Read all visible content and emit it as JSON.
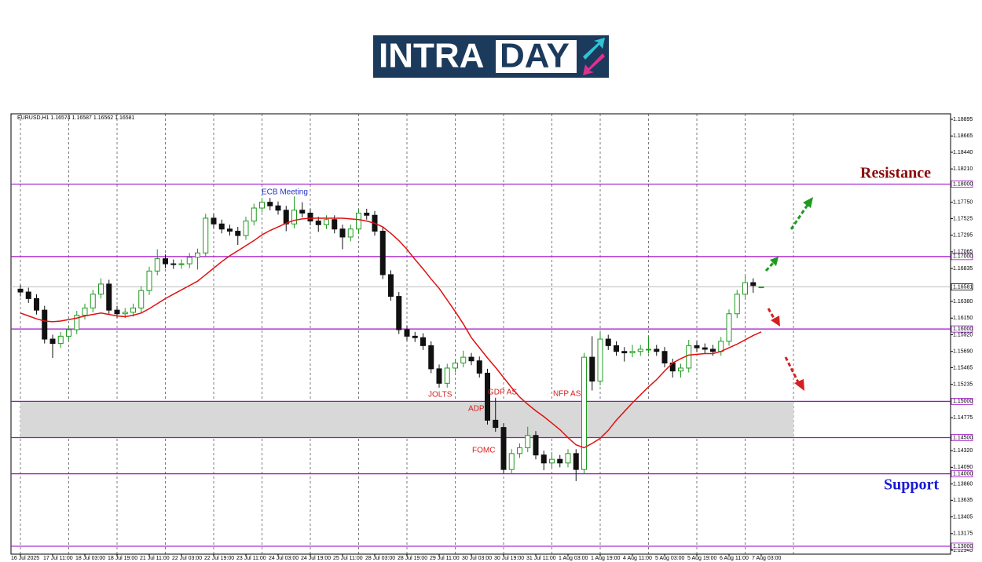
{
  "logo": [
    "INTRA",
    "DAY"
  ],
  "chart_data": {
    "type": "candlestick",
    "header": "EURUSD,H1  1.16574 1.16587 1.16562 1.16581",
    "categories": [
      "16 Jul 2025",
      null,
      null,
      null,
      "17 Jul 11:00",
      null,
      null,
      null,
      "18 Jul 03:00",
      null,
      null,
      null,
      "18 Jul 19:00",
      null,
      null,
      null,
      "21 Jul 11:00",
      null,
      null,
      null,
      "22 Jul 03:00",
      null,
      null,
      null,
      "22 Jul 19:00",
      null,
      null,
      null,
      "23 Jul 11:00",
      null,
      null,
      null,
      "24 Jul 03:00",
      null,
      null,
      null,
      "24 Jul 19:00",
      null,
      null,
      null,
      "25 Jul 11:00",
      null,
      null,
      null,
      "28 Jul 03:00",
      null,
      null,
      null,
      "28 Jul 19:00",
      null,
      null,
      null,
      "29 Jul 11:00",
      null,
      null,
      null,
      "30 Jul 03:00",
      null,
      null,
      null,
      "30 Jul 19:00",
      null,
      null,
      null,
      "31 Jul 11:00",
      null,
      null,
      null,
      "1 Aug 03:00",
      null,
      null,
      null,
      "1 Aug 19:00",
      null,
      null,
      null,
      "4 Aug 11:00",
      null,
      null,
      null,
      "5 Aug 03:00",
      null,
      null,
      null,
      "5 Aug 19:00",
      null,
      null,
      null,
      "6 Aug 11:00",
      null,
      null,
      null,
      "7 Aug 03:00"
    ],
    "open": [
      1.1655,
      1.1651,
      1.1642,
      1.1626,
      1.1586,
      1.158,
      1.159,
      1.1599,
      1.1619,
      1.1629,
      1.1648,
      1.1662,
      1.1626,
      1.1621,
      1.1623,
      1.1629,
      1.1653,
      1.168,
      1.1697,
      1.169,
      1.1689,
      1.169,
      1.1699,
      1.1705,
      1.1753,
      1.1745,
      1.1738,
      1.1735,
      1.1729,
      1.1749,
      1.1767,
      1.1775,
      1.177,
      1.1764,
      1.1745,
      1.1764,
      1.176,
      1.1749,
      1.1744,
      1.1751,
      1.1738,
      1.1727,
      1.1738,
      1.176,
      1.1757,
      1.1735,
      1.1675,
      1.1645,
      1.1599,
      1.159,
      1.1588,
      1.1577,
      1.1545,
      1.1525,
      1.1546,
      1.1553,
      1.1561,
      1.1556,
      1.1539,
      1.1474,
      1.1464,
      1.1406,
      1.1428,
      1.1436,
      1.1453,
      1.1426,
      1.1415,
      1.142,
      1.1415,
      1.1428,
      1.1406,
      1.1561,
      1.1528,
      1.1586,
      1.1577,
      1.1569,
      1.1567,
      1.1569,
      1.1572,
      1.1572,
      1.1569,
      1.1553,
      1.1542,
      1.1546,
      1.1577,
      1.1574,
      1.1572,
      1.1569,
      1.1583,
      1.1621,
      1.1648,
      1.1664,
      1.16574
    ],
    "high": [
      1.1661,
      1.1657,
      1.1648,
      1.1632,
      1.1592,
      1.1596,
      1.1605,
      1.1625,
      1.1635,
      1.1654,
      1.167,
      1.1668,
      1.1632,
      1.1629,
      1.1635,
      1.1659,
      1.1686,
      1.171,
      1.1703,
      1.1696,
      1.1696,
      1.1705,
      1.1711,
      1.1759,
      1.1759,
      1.1751,
      1.1744,
      1.1741,
      1.1755,
      1.1773,
      1.1781,
      1.1781,
      1.1776,
      1.177,
      1.1783,
      1.1775,
      1.1766,
      1.1755,
      1.1757,
      1.1757,
      1.1744,
      1.1744,
      1.1766,
      1.1766,
      1.1763,
      1.1741,
      1.1681,
      1.1651,
      1.1605,
      1.1596,
      1.1594,
      1.1583,
      1.1551,
      1.1552,
      1.1559,
      1.157,
      1.1567,
      1.1562,
      1.1545,
      1.1505,
      1.147,
      1.1434,
      1.1442,
      1.1465,
      1.1459,
      1.1432,
      1.143,
      1.1426,
      1.1434,
      1.1434,
      1.1567,
      1.159,
      1.1595,
      1.1592,
      1.1583,
      1.1575,
      1.1578,
      1.1578,
      1.159,
      1.1578,
      1.1575,
      1.1559,
      1.1552,
      1.1585,
      1.1583,
      1.158,
      1.1578,
      1.1589,
      1.1627,
      1.1654,
      1.1674,
      1.167,
      1.16587
    ],
    "low": [
      1.1645,
      1.1636,
      1.162,
      1.158,
      1.156,
      1.1574,
      1.1584,
      1.1593,
      1.1613,
      1.1623,
      1.1642,
      1.162,
      1.1615,
      1.1615,
      1.1617,
      1.1623,
      1.1647,
      1.1674,
      1.1684,
      1.1683,
      1.1683,
      1.1684,
      1.1682,
      1.1699,
      1.1739,
      1.1732,
      1.1729,
      1.1716,
      1.1723,
      1.1743,
      1.1761,
      1.1764,
      1.1758,
      1.1735,
      1.1739,
      1.1754,
      1.1743,
      1.1734,
      1.1738,
      1.1732,
      1.171,
      1.1721,
      1.1732,
      1.1751,
      1.1729,
      1.1669,
      1.1639,
      1.1593,
      1.1584,
      1.1582,
      1.1571,
      1.1539,
      1.1519,
      1.1519,
      1.154,
      1.1547,
      1.155,
      1.1533,
      1.1468,
      1.1458,
      1.14,
      1.14,
      1.1422,
      1.143,
      1.142,
      1.1405,
      1.1409,
      1.1409,
      1.1409,
      1.139,
      1.14,
      1.1515,
      1.1522,
      1.1571,
      1.1563,
      1.1555,
      1.1561,
      1.1563,
      1.1566,
      1.1563,
      1.1547,
      1.1533,
      1.1533,
      1.154,
      1.1568,
      1.1566,
      1.1563,
      1.1563,
      1.1577,
      1.1615,
      1.1642,
      1.165,
      1.16562
    ],
    "close": [
      1.1651,
      1.1642,
      1.1626,
      1.1586,
      1.158,
      1.159,
      1.1599,
      1.1619,
      1.1629,
      1.1648,
      1.1662,
      1.1626,
      1.1621,
      1.1623,
      1.1629,
      1.1653,
      1.168,
      1.1697,
      1.169,
      1.1689,
      1.169,
      1.1699,
      1.1705,
      1.1753,
      1.1745,
      1.1738,
      1.1735,
      1.1729,
      1.1749,
      1.1767,
      1.1775,
      1.177,
      1.1764,
      1.1745,
      1.1764,
      1.176,
      1.1749,
      1.1744,
      1.1751,
      1.1738,
      1.1727,
      1.1738,
      1.176,
      1.1757,
      1.1735,
      1.1675,
      1.1645,
      1.1599,
      1.159,
      1.1588,
      1.1577,
      1.1545,
      1.1525,
      1.1546,
      1.1553,
      1.1561,
      1.1556,
      1.1539,
      1.1474,
      1.1464,
      1.1406,
      1.1428,
      1.1436,
      1.1453,
      1.1426,
      1.1415,
      1.142,
      1.1415,
      1.1428,
      1.1406,
      1.1561,
      1.1528,
      1.1586,
      1.1577,
      1.1569,
      1.1567,
      1.1569,
      1.1572,
      1.1572,
      1.1569,
      1.1553,
      1.1542,
      1.1546,
      1.1577,
      1.1574,
      1.1572,
      1.1569,
      1.1583,
      1.1621,
      1.1648,
      1.1664,
      1.166,
      1.16581
    ],
    "up_color": "#1f9a1f",
    "down_color": "#111111",
    "ma": {
      "color": "#e01010",
      "values": [
        1.1622,
        1.1618,
        1.1614,
        1.1611,
        1.161,
        1.1611,
        1.1613,
        1.1615,
        1.1618,
        1.162,
        1.1622,
        1.162,
        1.1618,
        1.1617,
        1.1619,
        1.1622,
        1.1628,
        1.1635,
        1.1642,
        1.1648,
        1.1654,
        1.166,
        1.1666,
        1.1675,
        1.1684,
        1.1693,
        1.1701,
        1.1708,
        1.1715,
        1.1722,
        1.173,
        1.1736,
        1.1741,
        1.1746,
        1.175,
        1.1752,
        1.1753,
        1.1753,
        1.1753,
        1.1753,
        1.1753,
        1.1752,
        1.1751,
        1.1749,
        1.1746,
        1.1741,
        1.1732,
        1.1722,
        1.171,
        1.1696,
        1.1683,
        1.1669,
        1.1656,
        1.164,
        1.1624,
        1.1607,
        1.1588,
        1.1574,
        1.156,
        1.1547,
        1.1533,
        1.1519,
        1.1506,
        1.1496,
        1.1487,
        1.1479,
        1.147,
        1.1461,
        1.145,
        1.144,
        1.1436,
        1.1442,
        1.1449,
        1.146,
        1.1474,
        1.1486,
        1.1498,
        1.1509,
        1.152,
        1.153,
        1.1542,
        1.1553,
        1.1559,
        1.1564,
        1.1565,
        1.1566,
        1.1566,
        1.1569,
        1.1574,
        1.1579,
        1.1585,
        1.1591,
        1.1596
      ]
    },
    "ylim": [
      1.12945,
      1.18895
    ],
    "yticks": [
      1.18895,
      1.18665,
      {
        "value": 1.1844,
        "label": "1.18440"
      },
      {
        "value": 1.1821,
        "label": "1.18210"
      },
      {
        "value": 1.1775,
        "label": "1.17750"
      },
      1.17525,
      1.17295,
      1.17065,
      1.16835,
      {
        "value": 1.1638,
        "label": "1.16380"
      },
      {
        "value": 1.1615,
        "label": "1.16150"
      },
      {
        "value": 1.1592,
        "label": "1.15920"
      },
      {
        "value": 1.1569,
        "label": "1.15690"
      },
      1.15465,
      1.15235,
      1.14775,
      {
        "value": 1.1432,
        "label": "1.14320"
      },
      {
        "value": 1.1409,
        "label": "1.14090"
      },
      {
        "value": 1.1386,
        "label": "1.13860"
      },
      1.13635,
      1.13405,
      1.13175,
      1.12945
    ],
    "levels": [
      {
        "value": 1.18,
        "label": "1.18000"
      },
      {
        "value": 1.17,
        "label": "1.17000"
      },
      {
        "value": 1.16,
        "label": "1.16000"
      },
      {
        "value": 1.15,
        "label": "1.15000"
      },
      {
        "value": 1.145,
        "label": "1.14500"
      },
      {
        "value": 1.14,
        "label": "1.14000"
      },
      {
        "value": 1.13,
        "label": "1.13000"
      }
    ],
    "level_color": "#a010c8",
    "current_price": {
      "value": 1.16581,
      "label": "1.16581"
    },
    "zone": {
      "from": 1.145,
      "to": 1.15,
      "color": "#d8d8d8"
    },
    "annotations": [
      {
        "text": "ECB Meeting",
        "color": "#2233cc"
      },
      {
        "text": "JOLTS",
        "color": "#d42020"
      },
      {
        "text": "GDP AS",
        "color": "#d42020"
      },
      {
        "text": "ADP",
        "color": "#d42020"
      },
      {
        "text": "NFP AS",
        "color": "#d42020"
      },
      {
        "text": "FOMC",
        "color": "#d42020"
      },
      {
        "text": "Resistance",
        "color": "#8b0a0a"
      },
      {
        "text": "Support",
        "color": "#1a1ad8"
      }
    ]
  }
}
